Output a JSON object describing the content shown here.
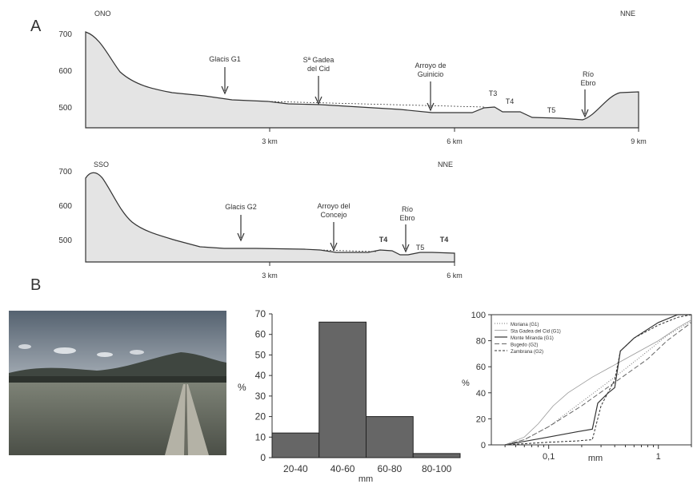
{
  "panels": {
    "a": "A",
    "b": "B"
  },
  "profile1": {
    "left_dir": "ONO",
    "right_dir": "NNE",
    "y_ticks": [
      "700",
      "600",
      "500"
    ],
    "x_ticks": [
      "3 km",
      "6 km",
      "9 km"
    ],
    "labels": {
      "glacis": "Glacis G1",
      "gadea_1": "Sª Gadea",
      "gadea_2": "del Cid",
      "arroyo_1": "Arroyo de",
      "arroyo_2": "Guinicio",
      "t3": "T3",
      "t4": "T4",
      "t5": "T5",
      "rio_1": "Río",
      "rio_2": "Ebro"
    }
  },
  "profile2": {
    "left_dir": "SSO",
    "right_dir": "NNE",
    "y_ticks": [
      "700",
      "600",
      "500"
    ],
    "x_ticks": [
      "3 km",
      "6 km"
    ],
    "labels": {
      "glacis": "Glacis G2",
      "arroyo_1": "Arroyo del",
      "arroyo_2": "Concejo",
      "t4a": "T4",
      "t4b": "T4",
      "t5": "T5",
      "rio_1": "Río",
      "rio_2": "Ebro"
    }
  },
  "photo": {
    "sky": "#6f7b88",
    "field": "#5a5f55"
  },
  "chart_data": [
    {
      "type": "bar",
      "categories": [
        "20-40",
        "40-60",
        "60-80",
        "80-100"
      ],
      "values": [
        12,
        66,
        20,
        2
      ],
      "xlabel": "mm",
      "ylabel": "%",
      "ylim": [
        0,
        70
      ],
      "y_ticks": [
        "0",
        "10",
        "20",
        "30",
        "40",
        "50",
        "60",
        "70"
      ],
      "bar_color": "#666666"
    },
    {
      "type": "line",
      "xlabel": "mm",
      "ylabel": "%",
      "x_scale": "log",
      "xlim": [
        0.03,
        2
      ],
      "ylim": [
        0,
        100
      ],
      "x_tick_labels": [
        {
          "v": 0.1,
          "label": "0,1"
        },
        {
          "v": 1,
          "label": "1"
        }
      ],
      "y_ticks": [
        "0",
        "20",
        "40",
        "60",
        "80",
        "100"
      ],
      "legend_position": "top-left",
      "series": [
        {
          "name": "Moriana (G1)",
          "dash": "1,2",
          "width": 1,
          "color": "#777777",
          "x": [
            0.04,
            0.06,
            0.1,
            0.2,
            0.4,
            0.8,
            1.2,
            2
          ],
          "y": [
            0,
            4,
            14,
            33,
            52,
            72,
            84,
            95
          ]
        },
        {
          "name": "Sta Gadea del Cid (G1)",
          "dash": "",
          "width": 0.8,
          "color": "#999999",
          "x": [
            0.04,
            0.06,
            0.08,
            0.11,
            0.15,
            0.25,
            0.5,
            1,
            1.5,
            2
          ],
          "y": [
            0,
            6,
            16,
            30,
            40,
            52,
            66,
            80,
            90,
            96
          ]
        },
        {
          "name": "Monte Miranda (G1)",
          "dash": "",
          "width": 1.2,
          "color": "#333333",
          "x": [
            0.04,
            0.1,
            0.18,
            0.25,
            0.28,
            0.35,
            0.4,
            0.45,
            0.6,
            1,
            1.5,
            2
          ],
          "y": [
            0,
            6,
            10,
            12,
            32,
            40,
            44,
            72,
            82,
            94,
            100,
            100
          ]
        },
        {
          "name": "Bugedo (G2)",
          "dash": "6,3",
          "width": 1,
          "color": "#666666",
          "x": [
            0.04,
            0.06,
            0.1,
            0.2,
            0.4,
            0.8,
            1.2,
            2
          ],
          "y": [
            0,
            4,
            14,
            30,
            48,
            66,
            80,
            94
          ]
        },
        {
          "name": "Zambrana (G2)",
          "dash": "3,2",
          "width": 1,
          "color": "#333333",
          "x": [
            0.04,
            0.1,
            0.18,
            0.25,
            0.3,
            0.4,
            0.45,
            0.6,
            1,
            1.5,
            2
          ],
          "y": [
            0,
            2,
            3,
            4,
            30,
            50,
            72,
            82,
            92,
            98,
            100
          ]
        }
      ]
    }
  ]
}
